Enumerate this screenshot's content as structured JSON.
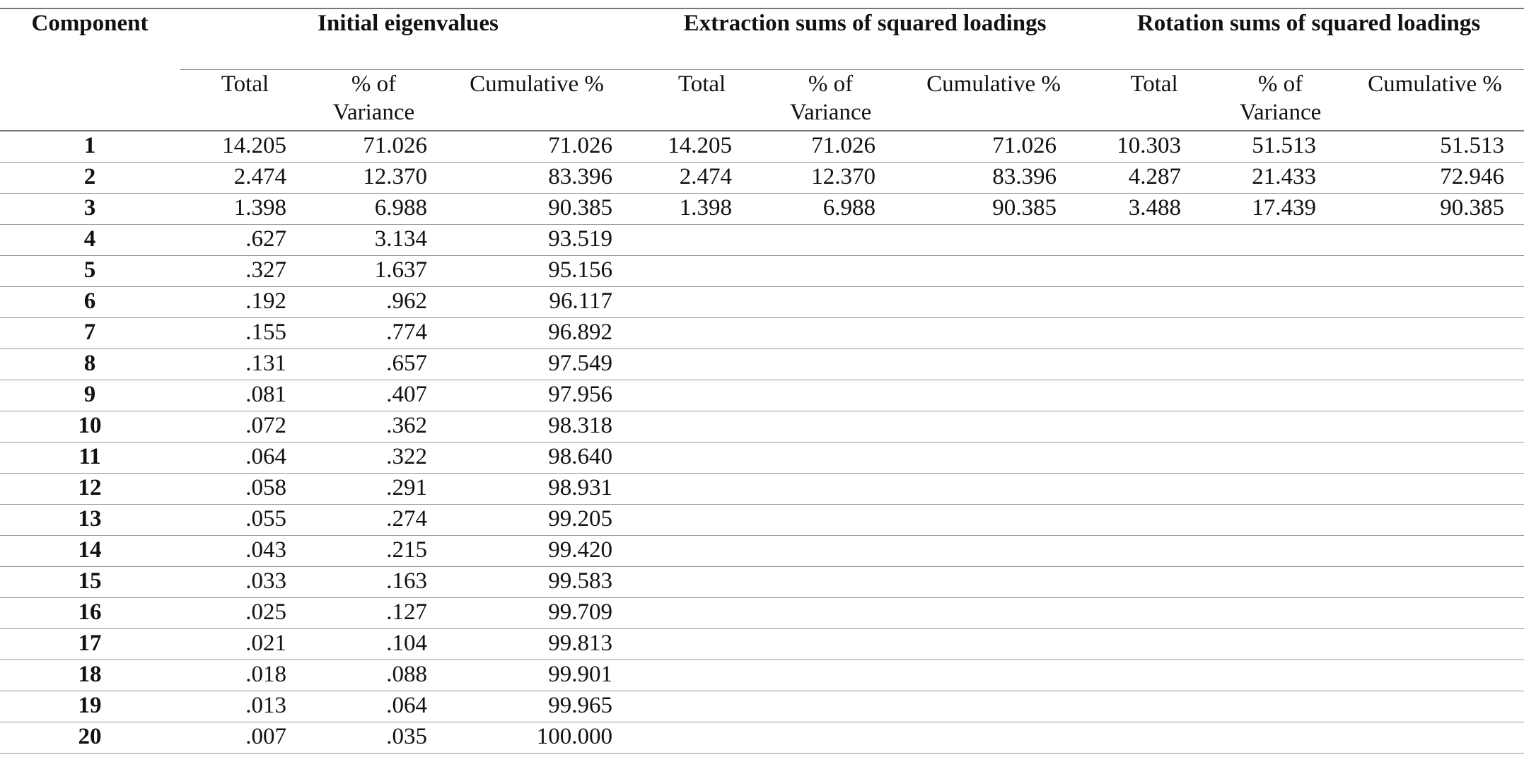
{
  "table": {
    "header": {
      "component": "Component",
      "groups": [
        "Initial eigenvalues",
        "Extraction sums of squared loadings",
        "Rotation sums of squared loadings"
      ],
      "subheaders": [
        "Total",
        "% of Variance",
        "Cumulative %",
        "Total",
        "% of Variance",
        "Cumulative %",
        "Total",
        "% of Variance",
        "Cumulative %"
      ]
    },
    "rows": [
      [
        "1",
        "14.205",
        "71.026",
        "71.026",
        "14.205",
        "71.026",
        "71.026",
        "10.303",
        "51.513",
        "51.513"
      ],
      [
        "2",
        "2.474",
        "12.370",
        "83.396",
        "2.474",
        "12.370",
        "83.396",
        "4.287",
        "21.433",
        "72.946"
      ],
      [
        "3",
        "1.398",
        "6.988",
        "90.385",
        "1.398",
        "6.988",
        "90.385",
        "3.488",
        "17.439",
        "90.385"
      ],
      [
        "4",
        ".627",
        "3.134",
        "93.519"
      ],
      [
        "5",
        ".327",
        "1.637",
        "95.156"
      ],
      [
        "6",
        ".192",
        ".962",
        "96.117"
      ],
      [
        "7",
        ".155",
        ".774",
        "96.892"
      ],
      [
        "8",
        ".131",
        ".657",
        "97.549"
      ],
      [
        "9",
        ".081",
        ".407",
        "97.956"
      ],
      [
        "10",
        ".072",
        ".362",
        "98.318"
      ],
      [
        "11",
        ".064",
        ".322",
        "98.640"
      ],
      [
        "12",
        ".058",
        ".291",
        "98.931"
      ],
      [
        "13",
        ".055",
        ".274",
        "99.205"
      ],
      [
        "14",
        ".043",
        ".215",
        "99.420"
      ],
      [
        "15",
        ".033",
        ".163",
        "99.583"
      ],
      [
        "16",
        ".025",
        ".127",
        "99.709"
      ],
      [
        "17",
        ".021",
        ".104",
        "99.813"
      ],
      [
        "18",
        ".018",
        ".088",
        "99.901"
      ],
      [
        "19",
        ".013",
        ".064",
        "99.965"
      ],
      [
        "20",
        ".007",
        ".035",
        "100.000"
      ]
    ]
  }
}
